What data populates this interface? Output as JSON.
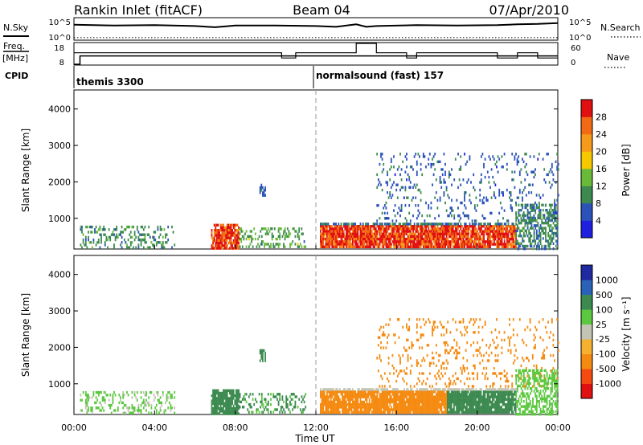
{
  "header": {
    "station": "Rankin Inlet (fitACF)",
    "beam": "Beam 04",
    "date": "07/Apr/2010"
  },
  "summary_panel": {
    "left_labels": {
      "nsky": "N.Sky",
      "freq": "Freq.",
      "freq_unit": "[MHz]",
      "cpid": "CPID"
    },
    "right_labels": {
      "nsearch": "N.Search",
      "nave": "Nave"
    },
    "nsky_ticks": [
      "10^5",
      "10^0"
    ],
    "nsearch_ticks": [
      "10^5",
      "10^0"
    ],
    "freq_ticks": [
      "18",
      "8"
    ],
    "nave_ticks": [
      "60",
      "0"
    ],
    "cpid_segments": [
      {
        "label": "themis 3300",
        "start_hour": 0
      },
      {
        "label": "normalsound (fast) 157",
        "start_hour": 12
      }
    ]
  },
  "x_axis": {
    "label": "Time UT",
    "ticks": [
      "00:00",
      "04:00",
      "08:00",
      "12:00",
      "16:00",
      "20:00",
      "00:00"
    ],
    "range_hours": [
      0,
      24
    ],
    "reference_line_hour": 12
  },
  "colors": {
    "power": [
      "#1f1fe0",
      "#2a52b8",
      "#3c8a50",
      "#6aba3a",
      "#f5c800",
      "#f59a1a",
      "#f26a14",
      "#e01010"
    ],
    "velocity": [
      "#e01010",
      "#f54a10",
      "#f58a10",
      "#f5b030",
      "#c4c4b4",
      "#5cc840",
      "#3c8a50",
      "#2a62b8",
      "#1f2aa0"
    ]
  },
  "panels": {
    "power": {
      "ylabel": "Slant Range [km]",
      "yticks": [
        "1000",
        "2000",
        "3000",
        "4000"
      ],
      "colorbar_label": "Power [dB]",
      "colorbar_ticks": [
        "4",
        "8",
        "12",
        "16",
        "20",
        "24",
        "28"
      ]
    },
    "velocity": {
      "ylabel": "Slant Range [km]",
      "yticks": [
        "1000",
        "2000",
        "3000",
        "4000"
      ],
      "colorbar_label": "Velocity [m s⁻¹]",
      "colorbar_ticks": [
        "1000",
        "500",
        "100",
        "25",
        "-25",
        "-100",
        "-500",
        "-1000"
      ]
    }
  },
  "chart_data": [
    {
      "type": "line",
      "series": [
        {
          "name": "N.Sky",
          "x": [
            0,
            2,
            4,
            6,
            7,
            7.5,
            8,
            10,
            12,
            13,
            14,
            14.5,
            15,
            17,
            19,
            21,
            22,
            23,
            24
          ],
          "y": [
            3.5,
            3.3,
            3.4,
            3.2,
            2.9,
            3.1,
            3.3,
            3.3,
            3.2,
            3.0,
            3.6,
            3.0,
            3.2,
            3.4,
            3.3,
            3.4,
            3.6,
            3.7,
            3.9
          ]
        },
        {
          "name": "N.Search",
          "x": [
            0,
            24
          ],
          "y": [
            0.4,
            0.4
          ]
        }
      ],
      "xlim": [
        0,
        24
      ],
      "ylim": [
        0,
        5
      ]
    },
    {
      "type": "line",
      "series": [
        {
          "name": "Freq.",
          "x": [
            0,
            0.3,
            0.3,
            24
          ],
          "y": [
            8,
            8,
            12,
            12
          ]
        },
        {
          "name": "Nave",
          "x": [
            0,
            10.3,
            10.3,
            11,
            11,
            14,
            14,
            15,
            15,
            16.5,
            16.5,
            17,
            17,
            21,
            21,
            22,
            22,
            23,
            23,
            24
          ],
          "y": [
            33,
            33,
            18,
            18,
            33,
            33,
            60,
            60,
            33,
            33,
            18,
            18,
            33,
            33,
            18,
            18,
            33,
            33,
            18,
            18
          ]
        }
      ],
      "xlim": [
        0,
        24
      ],
      "ylim_freq": [
        8,
        18
      ],
      "ylim_nave": [
        0,
        60
      ]
    },
    {
      "type": "heatmap",
      "quantity": "Power",
      "unit": "dB",
      "ylim": [
        180,
        4500
      ],
      "xlim": [
        0,
        24
      ],
      "color_scale": [
        4,
        8,
        12,
        16,
        20,
        24,
        28
      ],
      "regions": [
        {
          "t": [
            0.3,
            5.0
          ],
          "range": [
            200,
            800
          ],
          "value": 10,
          "density": 0.3
        },
        {
          "t": [
            6.8,
            8.2
          ],
          "range": [
            200,
            850
          ],
          "value": 29,
          "density": 0.85
        },
        {
          "t": [
            8.2,
            11.5
          ],
          "range": [
            200,
            750
          ],
          "value": 12,
          "density": 0.35
        },
        {
          "t": [
            12.2,
            21.9
          ],
          "range": [
            200,
            820
          ],
          "value": 29,
          "density": 0.9
        },
        {
          "t": [
            12.2,
            21.9
          ],
          "range": [
            820,
            880
          ],
          "value": 8,
          "density": 0.7
        },
        {
          "t": [
            15.0,
            24.0
          ],
          "range": [
            900,
            2800
          ],
          "value": 7,
          "density": 0.12
        },
        {
          "t": [
            21.9,
            24.0
          ],
          "range": [
            200,
            1400
          ],
          "value": 9,
          "density": 0.55
        },
        {
          "t": [
            9.2,
            9.5
          ],
          "range": [
            1600,
            1950
          ],
          "value": 6,
          "density": 0.6
        }
      ]
    },
    {
      "type": "heatmap",
      "quantity": "Velocity",
      "unit": "m s⁻¹",
      "ylim": [
        180,
        4500
      ],
      "xlim": [
        0,
        24
      ],
      "color_scale": [
        -1000,
        -500,
        -100,
        -25,
        25,
        100,
        500,
        1000
      ],
      "regions": [
        {
          "t": [
            0.3,
            5.0
          ],
          "range": [
            200,
            800
          ],
          "value": 30,
          "density": 0.3
        },
        {
          "t": [
            6.8,
            8.2
          ],
          "range": [
            200,
            850
          ],
          "value": 150,
          "density": 0.85
        },
        {
          "t": [
            8.2,
            11.5
          ],
          "range": [
            200,
            750
          ],
          "value": 110,
          "density": 0.35
        },
        {
          "t": [
            12.2,
            18.5
          ],
          "range": [
            200,
            820
          ],
          "value": -200,
          "density": 0.9
        },
        {
          "t": [
            18.5,
            21.9
          ],
          "range": [
            200,
            820
          ],
          "value": 150,
          "density": 0.9
        },
        {
          "t": [
            12.2,
            21.9
          ],
          "range": [
            820,
            880
          ],
          "value": 10,
          "density": 0.7
        },
        {
          "t": [
            15.0,
            24.0
          ],
          "range": [
            900,
            2800
          ],
          "value": -200,
          "density": 0.12
        },
        {
          "t": [
            21.9,
            24.0
          ],
          "range": [
            200,
            1400
          ],
          "value": 50,
          "density": 0.55
        },
        {
          "t": [
            9.2,
            9.5
          ],
          "range": [
            1600,
            1950
          ],
          "value": 150,
          "density": 0.6
        }
      ]
    }
  ]
}
